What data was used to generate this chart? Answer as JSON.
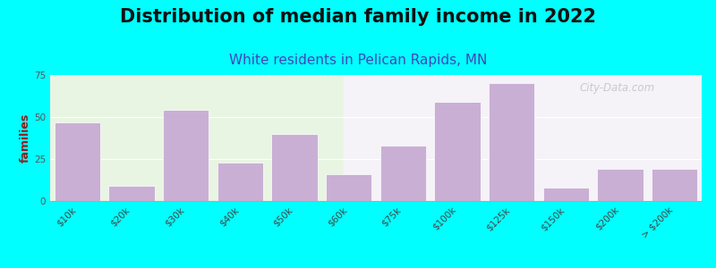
{
  "title": "Distribution of median family income in 2022",
  "subtitle": "White residents in Pelican Rapids, MN",
  "ylabel": "families",
  "background_color": "#00ffff",
  "plot_bg_left_color": "#e8f5e2",
  "plot_bg_right_color": "#f5f2f8",
  "bar_color": "#c9afd4",
  "bar_edge_color": "#ffffff",
  "categories": [
    "$10k",
    "$20k",
    "$30k",
    "$40k",
    "$50k",
    "$60k",
    "$75k",
    "$100k",
    "$125k",
    "$150k",
    "$200k",
    "> $200k"
  ],
  "values": [
    47,
    9,
    54,
    23,
    40,
    16,
    33,
    59,
    70,
    8,
    19,
    19
  ],
  "bg_split_index": 9,
  "ylim": [
    0,
    75
  ],
  "yticks": [
    0,
    25,
    50,
    75
  ],
  "title_fontsize": 15,
  "subtitle_fontsize": 11,
  "subtitle_color": "#4444bb",
  "ylabel_fontsize": 9,
  "ylabel_color": "#8b2020",
  "tick_label_fontsize": 7.5,
  "watermark_text": "City-Data.com",
  "watermark_color": "#bbbbbb"
}
